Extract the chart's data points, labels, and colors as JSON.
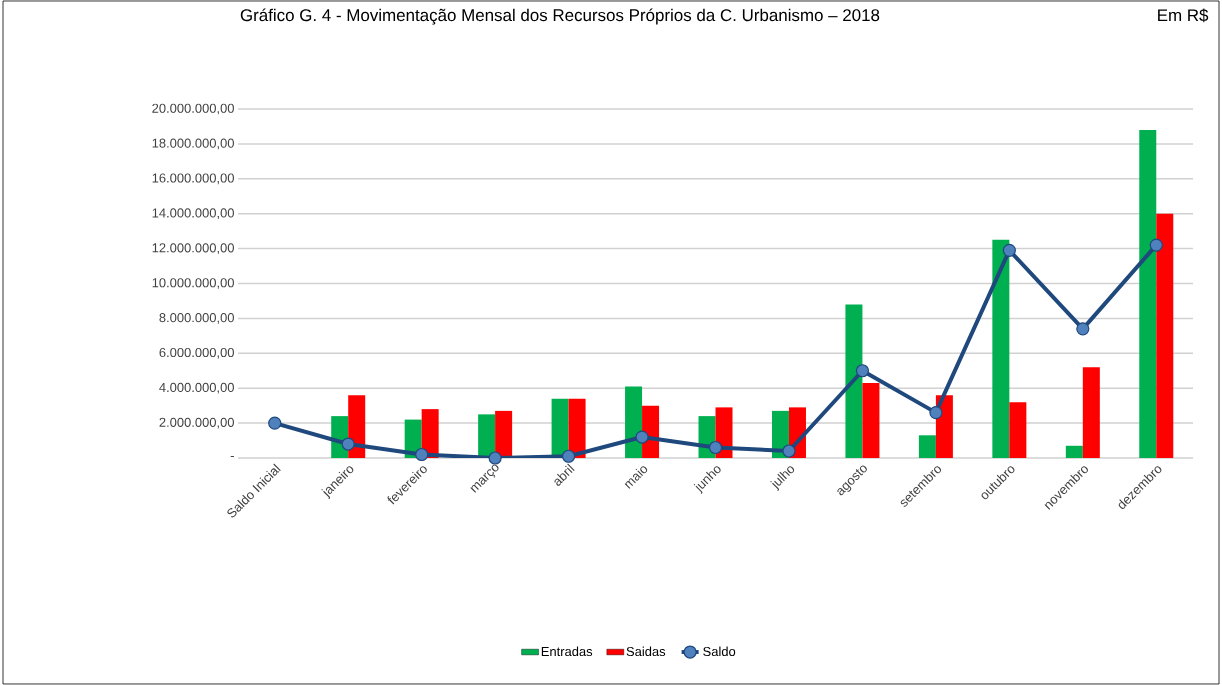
{
  "chart_data": {
    "type": "bar",
    "title": "Gráfico G. 4 - Movimentação Mensal dos Recursos Próprios da C. Urbanismo – 2018",
    "subtitle": "Em R$",
    "categories": [
      "Saldo Inicial",
      "janeiro",
      "fevereiro",
      "março",
      "abril",
      "maio",
      "junho",
      "julho",
      "agosto",
      "setembro",
      "outubro",
      "novembro",
      "dezembro"
    ],
    "series": [
      {
        "name": "Entradas",
        "color": "#00b050",
        "values": [
          null,
          2400000,
          2200000,
          2500000,
          3400000,
          4100000,
          2400000,
          2700000,
          8800000,
          1300000,
          12500000,
          700000,
          18800000
        ]
      },
      {
        "name": "Saidas",
        "color": "#ff0000",
        "values": [
          null,
          3600000,
          2800000,
          2700000,
          3400000,
          3000000,
          2900000,
          2900000,
          4300000,
          3600000,
          3200000,
          5200000,
          14000000
        ]
      },
      {
        "name": "Saldo",
        "type": "line",
        "color": "#1f497d",
        "marker": "circle",
        "values": [
          2000000,
          800000,
          200000,
          0,
          100000,
          1200000,
          600000,
          400000,
          5000000,
          2600000,
          11900000,
          7400000,
          12200000
        ]
      }
    ],
    "ylim": [
      0,
      20000000
    ],
    "yticks": [
      {
        "value": 0,
        "label": "-"
      },
      {
        "value": 2000000,
        "label": "2.000.000,00"
      },
      {
        "value": 4000000,
        "label": "4.000.000,00"
      },
      {
        "value": 6000000,
        "label": "6.000.000,00"
      },
      {
        "value": 8000000,
        "label": "8.000.000,00"
      },
      {
        "value": 10000000,
        "label": "10.000.000,00"
      },
      {
        "value": 12000000,
        "label": "12.000.000,00"
      },
      {
        "value": 14000000,
        "label": "14.000.000,00"
      },
      {
        "value": 16000000,
        "label": "16.000.000,00"
      },
      {
        "value": 18000000,
        "label": "18.000.000,00"
      },
      {
        "value": 20000000,
        "label": "20.000.000,00"
      }
    ],
    "grid": "y",
    "legend": "bottom"
  }
}
